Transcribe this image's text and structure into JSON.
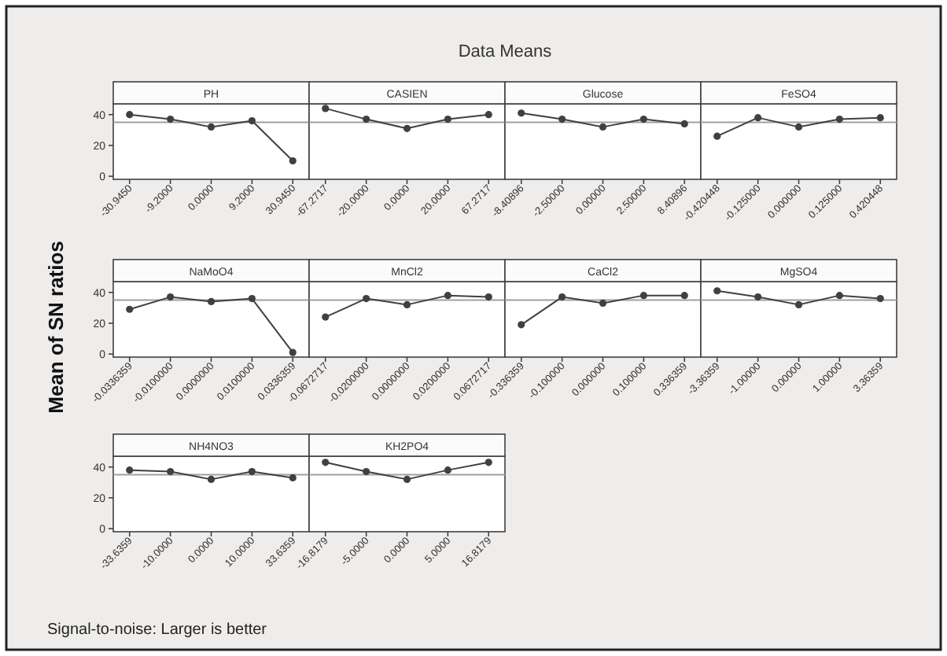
{
  "chart_data": [
    {
      "type": "other",
      "title": "Data Means",
      "ylabel": "Mean of SN ratios",
      "annotations": [
        "Signal-to-noise: Larger is better"
      ]
    },
    {
      "type": "line",
      "title": "PH",
      "categories": [
        "-30.9450",
        "-9.2000",
        "0.0000",
        "9.2000",
        "30.9450"
      ],
      "values": [
        40,
        37,
        32,
        36,
        10
      ],
      "color": "#404040",
      "marker": "circle",
      "ylim": [
        -2,
        47
      ],
      "yticks": [
        0,
        20,
        40
      ],
      "ref_lines": [
        {
          "axis": "y",
          "value": 35,
          "color": "#a0a0a0"
        }
      ]
    },
    {
      "type": "line",
      "title": "CASIEN",
      "categories": [
        "-67.2717",
        "-20.0000",
        "0.0000",
        "20.0000",
        "67.2717"
      ],
      "values": [
        44,
        37,
        31,
        37,
        40
      ],
      "color": "#404040",
      "marker": "circle",
      "ylim": [
        -2,
        47
      ],
      "tick_labels": "x",
      "ref_lines": [
        {
          "axis": "y",
          "value": 35,
          "color": "#a0a0a0"
        }
      ]
    },
    {
      "type": "line",
      "title": "Glucose",
      "categories": [
        "-8.40896",
        "-2.50000",
        "0.00000",
        "2.50000",
        "8.40896"
      ],
      "values": [
        41,
        37,
        32,
        37,
        34
      ],
      "color": "#404040",
      "marker": "circle",
      "ylim": [
        -2,
        47
      ],
      "tick_labels": "x",
      "ref_lines": [
        {
          "axis": "y",
          "value": 35,
          "color": "#a0a0a0"
        }
      ]
    },
    {
      "type": "line",
      "title": "FeSO4",
      "categories": [
        "-0.420448",
        "-0.125000",
        "0.000000",
        "0.125000",
        "0.420448"
      ],
      "values": [
        26,
        38,
        32,
        37,
        38
      ],
      "color": "#404040",
      "marker": "circle",
      "ylim": [
        -2,
        47
      ],
      "tick_labels": "x",
      "ref_lines": [
        {
          "axis": "y",
          "value": 35,
          "color": "#a0a0a0"
        }
      ]
    },
    {
      "type": "line",
      "title": "NaMoO4",
      "categories": [
        "-0.0336359",
        "-0.0100000",
        "0.0000000",
        "0.0100000",
        "0.0336359"
      ],
      "values": [
        29,
        37,
        34,
        36,
        1
      ],
      "color": "#404040",
      "marker": "circle",
      "ylim": [
        -2,
        47
      ],
      "yticks": [
        0,
        20,
        40
      ],
      "ref_lines": [
        {
          "axis": "y",
          "value": 35,
          "color": "#a0a0a0"
        }
      ]
    },
    {
      "type": "line",
      "title": "MnCl2",
      "categories": [
        "-0.0672717",
        "-0.0200000",
        "0.0000000",
        "0.0200000",
        "0.0672717"
      ],
      "values": [
        24,
        36,
        32,
        38,
        37
      ],
      "color": "#404040",
      "marker": "circle",
      "ylim": [
        -2,
        47
      ],
      "tick_labels": "x",
      "ref_lines": [
        {
          "axis": "y",
          "value": 35,
          "color": "#a0a0a0"
        }
      ]
    },
    {
      "type": "line",
      "title": "CaCl2",
      "categories": [
        "-0.336359",
        "-0.100000",
        "0.000000",
        "0.100000",
        "0.336359"
      ],
      "values": [
        19,
        37,
        33,
        38,
        38
      ],
      "color": "#404040",
      "marker": "circle",
      "ylim": [
        -2,
        47
      ],
      "tick_labels": "x",
      "ref_lines": [
        {
          "axis": "y",
          "value": 35,
          "color": "#a0a0a0"
        }
      ]
    },
    {
      "type": "line",
      "title": "MgSO4",
      "categories": [
        "-3.36359",
        "-1.00000",
        "0.00000",
        "1.00000",
        "3.36359"
      ],
      "values": [
        41,
        37,
        32,
        38,
        36
      ],
      "color": "#404040",
      "marker": "circle",
      "ylim": [
        -2,
        47
      ],
      "tick_labels": "x",
      "ref_lines": [
        {
          "axis": "y",
          "value": 35,
          "color": "#a0a0a0"
        }
      ]
    },
    {
      "type": "line",
      "title": "NH4NO3",
      "categories": [
        "-33.6359",
        "-10.0000",
        "0.0000",
        "10.0000",
        "33.6359"
      ],
      "values": [
        38,
        37,
        32,
        37,
        33
      ],
      "color": "#404040",
      "marker": "circle",
      "ylim": [
        -2,
        47
      ],
      "yticks": [
        0,
        20,
        40
      ],
      "ref_lines": [
        {
          "axis": "y",
          "value": 35,
          "color": "#a0a0a0"
        }
      ]
    },
    {
      "type": "line",
      "title": "KH2PO4",
      "categories": [
        "-16.8179",
        "-5.0000",
        "0.0000",
        "5.0000",
        "16.8179"
      ],
      "values": [
        43,
        37,
        32,
        38,
        43
      ],
      "color": "#404040",
      "marker": "circle",
      "ylim": [
        -2,
        47
      ],
      "tick_labels": "x",
      "ref_lines": [
        {
          "axis": "y",
          "value": 35,
          "color": "#a0a0a0"
        }
      ]
    }
  ]
}
